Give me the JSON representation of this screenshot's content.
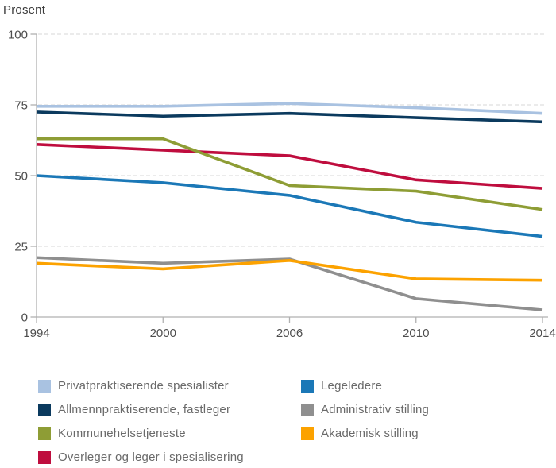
{
  "page": {
    "background": "#ffffff"
  },
  "chart": {
    "unit_label": "Prosent"
  },
  "chart_data": {
    "type": "line",
    "title": "",
    "ylabel": "Prosent",
    "xlabel": "",
    "ylim": [
      0,
      100
    ],
    "y_ticks": [
      0,
      25,
      50,
      75,
      100
    ],
    "x": [
      1994,
      2000,
      2006,
      2010,
      2014
    ],
    "x_tick_labels": [
      "1994",
      "2000",
      "2006",
      "2010",
      "2014"
    ],
    "x_spacing": "equal-categorical",
    "grid": "horizontal-dashed",
    "legend_position": "bottom-two-columns",
    "series": [
      {
        "name": "Privatpraktiserende spesialister",
        "color": "#a9c2e1",
        "values": [
          74.5,
          74.5,
          75.5,
          74,
          72
        ]
      },
      {
        "name": "Allmennpraktiserende, fastleger",
        "color": "#0b3a5e",
        "values": [
          72.5,
          71,
          72,
          70.5,
          69
        ]
      },
      {
        "name": "Kommunehelsetjeneste",
        "color": "#8e9d35",
        "values": [
          63,
          63,
          46.5,
          44.5,
          38
        ]
      },
      {
        "name": "Overleger og leger i spesialisering",
        "color": "#bf0d3e",
        "values": [
          61,
          59,
          57,
          48.5,
          45.5
        ]
      },
      {
        "name": "Legeledere",
        "color": "#1b78b7",
        "values": [
          50,
          47.5,
          43,
          33.5,
          28.5
        ]
      },
      {
        "name": "Administrativ stilling",
        "color": "#8f8f8f",
        "values": [
          21,
          19,
          20.5,
          6.5,
          2.5
        ]
      },
      {
        "name": "Akademisk stilling",
        "color": "#fca200",
        "values": [
          19,
          17,
          20,
          13.5,
          13
        ]
      }
    ]
  },
  "legend": {
    "columns": [
      [
        0,
        1,
        2,
        3
      ],
      [
        4,
        5,
        6
      ]
    ]
  },
  "styles": {
    "axis_color": "#b0b0b0",
    "grid_color": "#dfdfdf",
    "tick_label_color": "#4d4d4d",
    "legend_text_color": "#6a6a6a"
  }
}
